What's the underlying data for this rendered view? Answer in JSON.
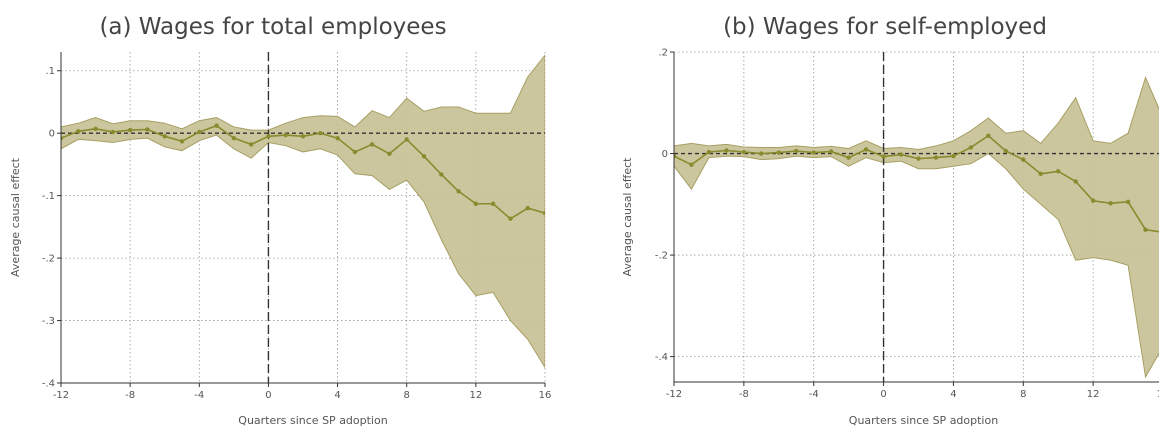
{
  "chart_data": [
    {
      "type": "line",
      "title": "(a) Wages for total employees",
      "xlabel": "Quarters since SP adoption",
      "ylabel": "Average causal effect",
      "xlim": [
        -12,
        16
      ],
      "ylim": [
        -0.4,
        0.13
      ],
      "x_ticks": [
        -12,
        -8,
        -4,
        0,
        4,
        8,
        12,
        16
      ],
      "x_tick_labels": [
        "-12",
        "-8",
        "-4",
        "0",
        "4",
        "8",
        "12",
        "16"
      ],
      "y_ticks": [
        0.1,
        0,
        -0.1,
        -0.2,
        -0.3,
        -0.4
      ],
      "y_tick_labels": [
        ".1",
        "0",
        "-.1",
        "-.2",
        "-.3",
        "-.4"
      ],
      "grid": true,
      "reference_lines": {
        "x": 0,
        "y": 0
      },
      "colors": {
        "line": "#8a8a2e",
        "band": "#c8c196",
        "band_edge": "#a79f63",
        "ref": "#333333",
        "grid": "#999999"
      },
      "series": [
        {
          "x": [
            -12,
            -11,
            -10,
            -9,
            -8,
            -7,
            -6,
            -5,
            -4,
            -3,
            -2,
            -1,
            0,
            1,
            2,
            3,
            4,
            5,
            6,
            7,
            8,
            9,
            10,
            11,
            12,
            13,
            14,
            15,
            16
          ],
          "y": [
            -0.008,
            0.003,
            0.007,
            0.002,
            0.005,
            0.006,
            -0.005,
            -0.013,
            0.002,
            0.012,
            -0.008,
            -0.018,
            -0.005,
            -0.003,
            -0.005,
            0.0,
            -0.008,
            -0.03,
            -0.018,
            -0.033,
            -0.01,
            -0.037,
            -0.066,
            -0.093,
            -0.113,
            -0.113,
            -0.137,
            -0.12,
            -0.128
          ],
          "ci_upper": [
            0.01,
            0.016,
            0.025,
            0.015,
            0.02,
            0.02,
            0.016,
            0.007,
            0.02,
            0.025,
            0.01,
            0.005,
            0.005,
            0.016,
            0.025,
            0.028,
            0.027,
            0.01,
            0.036,
            0.025,
            0.056,
            0.035,
            0.042,
            0.042,
            0.032,
            0.032,
            0.032,
            0.09,
            0.125
          ],
          "ci_lower": [
            -0.025,
            -0.01,
            -0.012,
            -0.015,
            -0.01,
            -0.008,
            -0.022,
            -0.028,
            -0.012,
            -0.003,
            -0.025,
            -0.04,
            -0.015,
            -0.02,
            -0.03,
            -0.025,
            -0.035,
            -0.065,
            -0.068,
            -0.09,
            -0.075,
            -0.11,
            -0.17,
            -0.225,
            -0.26,
            -0.255,
            -0.3,
            -0.33,
            -0.375
          ]
        }
      ]
    },
    {
      "type": "line",
      "title": "(b) Wages for self-employed",
      "xlabel": "Quarters since SP adoption",
      "ylabel": "Average causal effect",
      "xlim": [
        -12,
        16
      ],
      "ylim": [
        -0.45,
        0.2
      ],
      "x_ticks": [
        -12,
        -8,
        -4,
        0,
        4,
        8,
        12,
        16
      ],
      "x_tick_labels": [
        "-12",
        "-8",
        "-4",
        "0",
        "4",
        "8",
        "12",
        "16"
      ],
      "y_ticks": [
        0.2,
        0,
        -0.2,
        -0.4
      ],
      "y_tick_labels": [
        ".2",
        "0",
        "-.2",
        "-.4"
      ],
      "grid": true,
      "reference_lines": {
        "x": 0,
        "y": 0
      },
      "colors": {
        "line": "#8a8a2e",
        "band": "#c8c196",
        "band_edge": "#a79f63",
        "ref": "#333333",
        "grid": "#999999"
      },
      "series": [
        {
          "x": [
            -12,
            -11,
            -10,
            -9,
            -8,
            -7,
            -6,
            -5,
            -4,
            -3,
            -2,
            -1,
            0,
            1,
            2,
            3,
            4,
            5,
            6,
            7,
            8,
            9,
            10,
            11,
            12,
            13,
            14,
            15,
            16
          ],
          "y": [
            -0.005,
            -0.022,
            0.003,
            0.006,
            0.003,
            0.0,
            0.002,
            0.005,
            0.002,
            0.004,
            -0.008,
            0.008,
            -0.006,
            -0.002,
            -0.01,
            -0.008,
            -0.005,
            0.012,
            0.035,
            0.005,
            -0.012,
            -0.04,
            -0.035,
            -0.055,
            -0.093,
            -0.098,
            -0.095,
            -0.15,
            -0.155
          ],
          "ci_upper": [
            0.015,
            0.02,
            0.015,
            0.018,
            0.013,
            0.012,
            0.012,
            0.015,
            0.012,
            0.014,
            0.01,
            0.025,
            0.01,
            0.012,
            0.008,
            0.015,
            0.025,
            0.045,
            0.07,
            0.04,
            0.045,
            0.02,
            0.06,
            0.11,
            0.025,
            0.02,
            0.04,
            0.15,
            0.07
          ],
          "ci_lower": [
            -0.025,
            -0.07,
            -0.008,
            -0.005,
            -0.006,
            -0.012,
            -0.01,
            -0.005,
            -0.008,
            -0.006,
            -0.025,
            -0.008,
            -0.018,
            -0.015,
            -0.03,
            -0.03,
            -0.025,
            -0.02,
            0.0,
            -0.03,
            -0.07,
            -0.1,
            -0.13,
            -0.21,
            -0.205,
            -0.21,
            -0.22,
            -0.44,
            -0.38
          ]
        }
      ]
    }
  ]
}
